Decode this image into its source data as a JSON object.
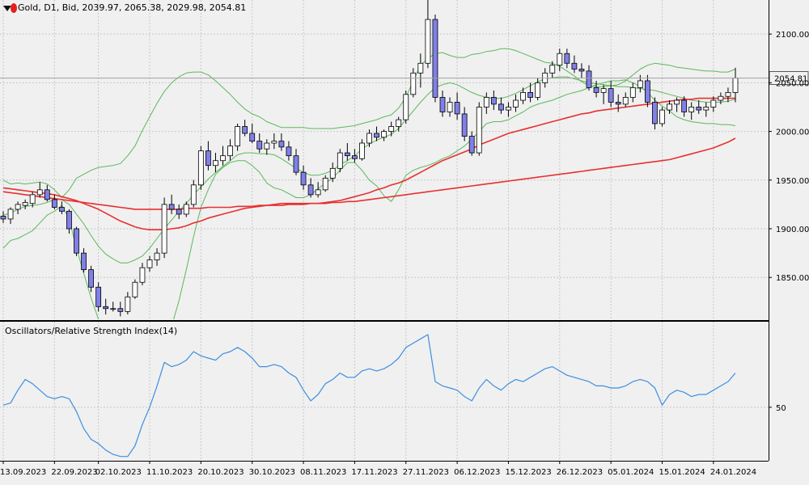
{
  "header": {
    "symbol": "Gold",
    "timeframe": "D1",
    "price_type": "Bid",
    "open": "2039.97",
    "high": "2065.38",
    "low": "2029.98",
    "close": "2054.81",
    "text": "Gold, D1, Bid, 2039.97, 2065.38, 2029.98, 2054.81"
  },
  "subwindow": {
    "title": "Oscillators/Relative Strength Index(14)"
  },
  "colors": {
    "background": "#f0f0f0",
    "grid": "#c8c8c8",
    "bull_candle": "#ffffff",
    "bear_candle": "#8080e8",
    "ma_fast": "#e83030",
    "ma_slow": "#e83030",
    "bollinger": "#5cb85c",
    "rsi": "#3d8fe0",
    "price_line": "#a0a0a0"
  },
  "chart_data": [
    {
      "type": "candlestick",
      "title": "Gold, D1, Bid",
      "ylim": [
        1807,
        2135
      ],
      "y_ticks": [
        1850,
        1900,
        1950,
        2000,
        2050,
        2100
      ],
      "current_price": 2054.81,
      "x_tick_labels": [
        {
          "index": 0,
          "label": "13.09.2023"
        },
        {
          "index": 7,
          "label": "22.09.2023"
        },
        {
          "index": 13,
          "label": "02.10.2023"
        },
        {
          "index": 20,
          "label": "11.10.2023"
        },
        {
          "index": 27,
          "label": "20.10.2023"
        },
        {
          "index": 34,
          "label": "30.10.2023"
        },
        {
          "index": 41,
          "label": "08.11.2023"
        },
        {
          "index": 48,
          "label": "17.11.2023"
        },
        {
          "index": 55,
          "label": "27.11.2023"
        },
        {
          "index": 62,
          "label": "06.12.2023"
        },
        {
          "index": 69,
          "label": "15.12.2023"
        },
        {
          "index": 76,
          "label": "26.12.2023"
        },
        {
          "index": 83,
          "label": "05.01.2024"
        },
        {
          "index": 90,
          "label": "15.01.2024"
        },
        {
          "index": 97,
          "label": "24.01.2024"
        }
      ],
      "ohlc": [
        [
          1913,
          1918,
          1906,
          1910
        ],
        [
          1910,
          1922,
          1905,
          1920
        ],
        [
          1920,
          1928,
          1915,
          1925
        ],
        [
          1924,
          1930,
          1920,
          1927
        ],
        [
          1926,
          1938,
          1922,
          1935
        ],
        [
          1935,
          1948,
          1932,
          1940
        ],
        [
          1940,
          1945,
          1928,
          1930
        ],
        [
          1930,
          1935,
          1920,
          1922
        ],
        [
          1922,
          1928,
          1915,
          1918
        ],
        [
          1918,
          1920,
          1895,
          1900
        ],
        [
          1900,
          1902,
          1872,
          1875
        ],
        [
          1875,
          1880,
          1855,
          1858
        ],
        [
          1858,
          1862,
          1835,
          1840
        ],
        [
          1840,
          1845,
          1815,
          1820
        ],
        [
          1820,
          1828,
          1812,
          1818
        ],
        [
          1818,
          1825,
          1815,
          1818
        ],
        [
          1818,
          1825,
          1810,
          1815
        ],
        [
          1815,
          1835,
          1812,
          1830
        ],
        [
          1830,
          1848,
          1828,
          1845
        ],
        [
          1845,
          1865,
          1842,
          1860
        ],
        [
          1860,
          1872,
          1856,
          1868
        ],
        [
          1868,
          1880,
          1862,
          1875
        ],
        [
          1875,
          1932,
          1870,
          1925
        ],
        [
          1925,
          1935,
          1915,
          1920
        ],
        [
          1920,
          1925,
          1910,
          1915
        ],
        [
          1915,
          1928,
          1912,
          1925
        ],
        [
          1925,
          1950,
          1922,
          1945
        ],
        [
          1945,
          1985,
          1940,
          1980
        ],
        [
          1980,
          1990,
          1960,
          1965
        ],
        [
          1965,
          1978,
          1958,
          1970
        ],
        [
          1970,
          1985,
          1965,
          1975
        ],
        [
          1975,
          1992,
          1970,
          1985
        ],
        [
          1985,
          2008,
          1980,
          2005
        ],
        [
          2005,
          2012,
          1995,
          1998
        ],
        [
          1998,
          2008,
          1988,
          1990
        ],
        [
          1990,
          1998,
          1978,
          1982
        ],
        [
          1982,
          1992,
          1976,
          1988
        ],
        [
          1988,
          1998,
          1982,
          1990
        ],
        [
          1990,
          1998,
          1980,
          1984
        ],
        [
          1984,
          1990,
          1970,
          1975
        ],
        [
          1975,
          1982,
          1955,
          1958
        ],
        [
          1958,
          1965,
          1940,
          1945
        ],
        [
          1945,
          1952,
          1932,
          1935
        ],
        [
          1935,
          1948,
          1932,
          1940
        ],
        [
          1940,
          1955,
          1938,
          1952
        ],
        [
          1952,
          1968,
          1948,
          1962
        ],
        [
          1962,
          1982,
          1958,
          1978
        ],
        [
          1978,
          1988,
          1970,
          1975
        ],
        [
          1975,
          1982,
          1968,
          1972
        ],
        [
          1972,
          1992,
          1970,
          1988
        ],
        [
          1988,
          2002,
          1984,
          1998
        ],
        [
          1998,
          2005,
          1990,
          1994
        ],
        [
          1994,
          2002,
          1990,
          2000
        ],
        [
          2000,
          2010,
          1995,
          2005
        ],
        [
          2005,
          2015,
          2000,
          2012
        ],
        [
          2012,
          2042,
          2008,
          2038
        ],
        [
          2038,
          2065,
          2035,
          2060
        ],
        [
          2060,
          2080,
          2045,
          2070
        ],
        [
          2070,
          2135,
          2065,
          2115
        ],
        [
          2115,
          2120,
          2030,
          2035
        ],
        [
          2035,
          2042,
          2015,
          2020
        ],
        [
          2020,
          2035,
          2015,
          2030
        ],
        [
          2030,
          2040,
          2012,
          2018
        ],
        [
          2018,
          2025,
          1990,
          1995
        ],
        [
          1995,
          2000,
          1975,
          1978
        ],
        [
          1978,
          2030,
          1975,
          2025
        ],
        [
          2025,
          2040,
          2018,
          2035
        ],
        [
          2035,
          2042,
          2022,
          2028
        ],
        [
          2028,
          2035,
          2018,
          2022
        ],
        [
          2022,
          2030,
          2015,
          2025
        ],
        [
          2025,
          2038,
          2020,
          2032
        ],
        [
          2032,
          2045,
          2028,
          2040
        ],
        [
          2040,
          2050,
          2030,
          2035
        ],
        [
          2035,
          2055,
          2032,
          2050
        ],
        [
          2050,
          2065,
          2045,
          2060
        ],
        [
          2060,
          2072,
          2055,
          2068
        ],
        [
          2068,
          2085,
          2062,
          2080
        ],
        [
          2080,
          2085,
          2065,
          2070
        ],
        [
          2070,
          2078,
          2060,
          2064
        ],
        [
          2064,
          2070,
          2055,
          2062
        ],
        [
          2062,
          2068,
          2042,
          2045
        ],
        [
          2045,
          2052,
          2035,
          2040
        ],
        [
          2040,
          2048,
          2028,
          2044
        ],
        [
          2044,
          2052,
          2025,
          2030
        ],
        [
          2030,
          2038,
          2020,
          2028
        ],
        [
          2028,
          2040,
          2025,
          2035
        ],
        [
          2035,
          2050,
          2030,
          2045
        ],
        [
          2045,
          2058,
          2040,
          2052
        ],
        [
          2052,
          2058,
          2025,
          2030
        ],
        [
          2030,
          2035,
          2002,
          2008
        ],
        [
          2008,
          2025,
          2005,
          2022
        ],
        [
          2022,
          2032,
          2018,
          2028
        ],
        [
          2028,
          2035,
          2020,
          2032
        ],
        [
          2032,
          2036,
          2015,
          2020
        ],
        [
          2020,
          2030,
          2012,
          2025
        ],
        [
          2025,
          2032,
          2018,
          2022
        ],
        [
          2022,
          2030,
          2015,
          2025
        ],
        [
          2025,
          2036,
          2020,
          2032
        ],
        [
          2032,
          2040,
          2028,
          2036
        ],
        [
          2036,
          2045,
          2030,
          2040
        ],
        [
          2039.97,
          2065.38,
          2029.98,
          2054.81
        ]
      ],
      "ma_fast": [
        1942,
        1941,
        1940,
        1939,
        1938,
        1937,
        1936,
        1935,
        1933,
        1931,
        1929,
        1926,
        1923,
        1920,
        1916,
        1912,
        1908,
        1905,
        1902,
        1900,
        1899,
        1899,
        1899,
        1900,
        1901,
        1903,
        1906,
        1908,
        1911,
        1913,
        1915,
        1917,
        1919,
        1921,
        1922,
        1923,
        1924,
        1925,
        1926,
        1926,
        1926,
        1926,
        1926,
        1926,
        1927,
        1928,
        1929,
        1931,
        1933,
        1935,
        1937,
        1940,
        1942,
        1945,
        1947,
        1950,
        1954,
        1958,
        1962,
        1966,
        1970,
        1973,
        1976,
        1979,
        1982,
        1986,
        1989,
        1992,
        1995,
        1998,
        2000,
        2002,
        2004,
        2006,
        2008,
        2010,
        2012,
        2014,
        2016,
        2018,
        2019,
        2021,
        2022,
        2023,
        2024,
        2025,
        2026,
        2027,
        2028,
        2029,
        2030,
        2031,
        2032,
        2033,
        2033,
        2034,
        2034,
        2034,
        2034,
        2034,
        2034
      ],
      "ma_slow": [
        1938,
        1937,
        1936,
        1935,
        1934,
        1933,
        1932,
        1931,
        1930,
        1929,
        1928,
        1927,
        1926,
        1925,
        1924,
        1923,
        1922,
        1921,
        1920,
        1920,
        1920,
        1920,
        1920,
        1920,
        1920,
        1921,
        1921,
        1921,
        1922,
        1922,
        1922,
        1922,
        1923,
        1923,
        1923,
        1924,
        1924,
        1924,
        1924,
        1925,
        1925,
        1925,
        1926,
        1926,
        1926,
        1927,
        1927,
        1928,
        1928,
        1929,
        1930,
        1931,
        1932,
        1933,
        1934,
        1935,
        1936,
        1937,
        1938,
        1939,
        1940,
        1941,
        1942,
        1943,
        1944,
        1945,
        1946,
        1947,
        1948,
        1949,
        1950,
        1951,
        1952,
        1953,
        1954,
        1955,
        1956,
        1957,
        1958,
        1959,
        1960,
        1961,
        1962,
        1963,
        1964,
        1965,
        1966,
        1967,
        1968,
        1969,
        1970,
        1971,
        1973,
        1975,
        1977,
        1979,
        1981,
        1983,
        1986,
        1989,
        1993
      ],
      "bollinger_upper": [
        1950,
        1946,
        1947,
        1946,
        1947,
        1948,
        1946,
        1940,
        1932,
        1940,
        1952,
        1956,
        1960,
        1963,
        1964,
        1965,
        1967,
        1975,
        1985,
        2001,
        2015,
        2029,
        2041,
        2050,
        2056,
        2060,
        2061,
        2061,
        2058,
        2052,
        2045,
        2038,
        2030,
        2023,
        2018,
        2015,
        2010,
        2007,
        2004,
        2004,
        2004,
        2004,
        2003,
        2003,
        2003,
        2003,
        2004,
        2005,
        2006,
        2008,
        2010,
        2012,
        2015,
        2017,
        2024,
        2035,
        2052,
        2068,
        2075,
        2080,
        2081,
        2078,
        2076,
        2076,
        2079,
        2080,
        2082,
        2083,
        2085,
        2085,
        2083,
        2080,
        2077,
        2074,
        2071,
        2070,
        2067,
        2062,
        2057,
        2051,
        2047,
        2046,
        2046,
        2047,
        2048,
        2052,
        2058,
        2064,
        2068,
        2070,
        2069,
        2068,
        2066,
        2065,
        2064,
        2063,
        2062,
        2062,
        2061,
        2061,
        2064
      ],
      "bollinger_middle": [
        1914,
        1916,
        1920,
        1923,
        1924,
        1925,
        1927,
        1930,
        1930,
        1925,
        1915,
        1905,
        1893,
        1882,
        1874,
        1869,
        1865,
        1865,
        1868,
        1872,
        1880,
        1890,
        1900,
        1909,
        1918,
        1926,
        1935,
        1943,
        1951,
        1958,
        1964,
        1970,
        1976,
        1978,
        1978,
        1977,
        1977,
        1976,
        1972,
        1967,
        1962,
        1958,
        1955,
        1955,
        1957,
        1960,
        1966,
        1970,
        1975,
        1982,
        1987,
        1991,
        1994,
        1997,
        2003,
        2012,
        2021,
        2030,
        2038,
        2045,
        2048,
        2050,
        2048,
        2044,
        2040,
        2037,
        2035,
        2034,
        2034,
        2036,
        2039,
        2043,
        2047,
        2051,
        2054,
        2055,
        2056,
        2056,
        2054,
        2052,
        2050,
        2049,
        2048,
        2047,
        2046,
        2046,
        2045,
        2044,
        2043,
        2042,
        2040,
        2038,
        2036,
        2034,
        2032,
        2031,
        2030,
        2030,
        2030,
        2031,
        2033
      ],
      "bollinger_lower": [
        1880,
        1888,
        1890,
        1894,
        1898,
        1906,
        1914,
        1918,
        1924,
        1910,
        1880,
        1854,
        1829,
        1807,
        1790,
        1780,
        1768,
        1760,
        1760,
        1763,
        1767,
        1770,
        1780,
        1800,
        1826,
        1858,
        1892,
        1922,
        1940,
        1956,
        1963,
        1968,
        1970,
        1970,
        1965,
        1958,
        1947,
        1942,
        1940,
        1936,
        1932,
        1932,
        1935,
        1941,
        1947,
        1952,
        1960,
        1968,
        1968,
        1960,
        1950,
        1944,
        1934,
        1928,
        1940,
        1955,
        1960,
        1963,
        1965,
        1968,
        1972,
        1975,
        1980,
        1985,
        1992,
        2000,
        2008,
        2010,
        2010,
        2012,
        2016,
        2020,
        2025,
        2028,
        2030,
        2032,
        2035,
        2038,
        2040,
        2042,
        2045,
        2048,
        2050,
        2052,
        2052,
        2053,
        2050,
        2046,
        2040,
        2032,
        2026,
        2021,
        2015,
        2012,
        2010,
        2009,
        2008,
        2008,
        2007,
        2007,
        2006
      ]
    },
    {
      "type": "line",
      "title": "Oscillators/Relative Strength Index(14)",
      "ylim": [
        25,
        90
      ],
      "y_ticks": [
        50
      ],
      "series": [
        {
          "values": [
            51,
            52,
            58,
            63,
            61,
            58,
            55,
            54,
            55,
            54,
            48,
            40,
            35,
            33,
            30,
            28,
            27,
            27,
            32,
            42,
            50,
            60,
            71,
            69,
            70,
            72,
            76,
            74,
            73,
            72,
            75,
            76,
            78,
            76,
            73,
            69,
            69,
            70,
            69,
            66,
            64,
            58,
            53,
            56,
            61,
            63,
            66,
            64,
            64,
            67,
            68,
            67,
            68,
            70,
            73,
            78,
            80,
            82,
            84,
            62,
            60,
            59,
            58,
            55,
            53,
            59,
            63,
            60,
            58,
            61,
            63,
            62,
            64,
            66,
            68,
            69,
            67,
            65,
            64,
            63,
            62,
            60,
            60,
            59,
            59,
            60,
            62,
            63,
            62,
            59,
            51,
            56,
            58,
            57,
            55,
            56,
            56,
            58,
            60,
            62,
            66
          ]
        }
      ]
    }
  ]
}
